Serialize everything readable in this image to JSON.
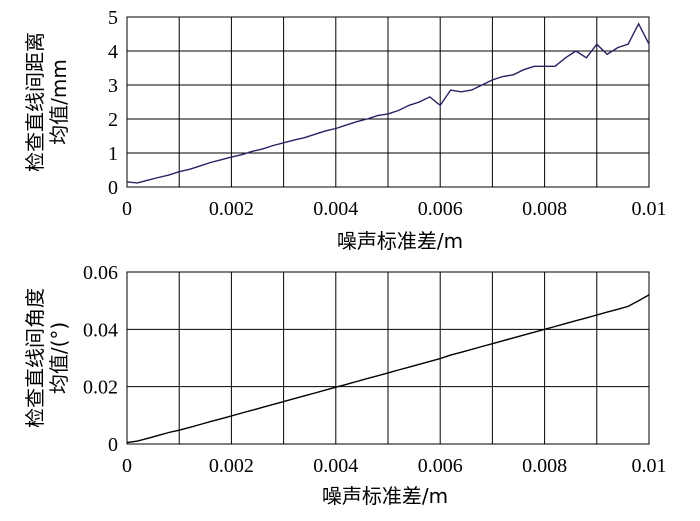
{
  "chart_data": [
    {
      "type": "line",
      "xlabel": "噪声标准差/m",
      "ylabel": [
        "检查直线间距离",
        "均值/mm"
      ],
      "xlim": [
        0,
        0.01
      ],
      "ylim": [
        0,
        5
      ],
      "xticks": [
        "0",
        "0.002",
        "0.004",
        "0.006",
        "0.008",
        "0.01"
      ],
      "yticks": [
        "0",
        "1",
        "2",
        "3",
        "4",
        "5"
      ],
      "grid": true,
      "line_color": "#2e1f63",
      "series": [
        {
          "x": [
            0,
            0.0002,
            0.0004,
            0.0006,
            0.0008,
            0.001,
            0.0012,
            0.0014,
            0.0016,
            0.0018,
            0.002,
            0.0022,
            0.0024,
            0.0026,
            0.0028,
            0.003,
            0.0032,
            0.0034,
            0.0036,
            0.0038,
            0.004,
            0.0042,
            0.0044,
            0.0046,
            0.0048,
            0.005,
            0.0052,
            0.0054,
            0.0056,
            0.0058,
            0.006,
            0.0062,
            0.0064,
            0.0066,
            0.0068,
            0.007,
            0.0072,
            0.0074,
            0.0076,
            0.0078,
            0.008,
            0.0082,
            0.0084,
            0.0086,
            0.0088,
            0.009,
            0.0092,
            0.0094,
            0.0096,
            0.0098,
            0.01
          ],
          "values": [
            0.15,
            0.12,
            0.2,
            0.28,
            0.35,
            0.45,
            0.52,
            0.62,
            0.72,
            0.8,
            0.88,
            0.95,
            1.05,
            1.12,
            1.22,
            1.3,
            1.38,
            1.45,
            1.55,
            1.65,
            1.72,
            1.82,
            1.92,
            2.0,
            2.1,
            2.15,
            2.25,
            2.4,
            2.5,
            2.65,
            2.4,
            2.85,
            2.8,
            2.85,
            3.0,
            3.15,
            3.25,
            3.3,
            3.45,
            3.55,
            3.55,
            3.55,
            3.8,
            4.0,
            3.8,
            4.2,
            3.9,
            4.1,
            4.2,
            4.8,
            4.2
          ]
        }
      ]
    },
    {
      "type": "line",
      "xlabel": "噪声标准差/m",
      "ylabel": [
        "检查直线间角度",
        "均值/(°)"
      ],
      "xlim": [
        0,
        0.01
      ],
      "ylim": [
        0,
        0.06
      ],
      "xticks": [
        "0",
        "0.002",
        "0.004",
        "0.006",
        "0.008",
        "0.01"
      ],
      "yticks": [
        "0",
        "0.02",
        "0.04",
        "0.06"
      ],
      "grid": true,
      "line_color": "#000000",
      "series": [
        {
          "x": [
            0,
            0.0002,
            0.0004,
            0.0006,
            0.0008,
            0.001,
            0.0012,
            0.0014,
            0.0016,
            0.0018,
            0.002,
            0.0022,
            0.0024,
            0.0026,
            0.0028,
            0.003,
            0.0032,
            0.0034,
            0.0036,
            0.0038,
            0.004,
            0.0042,
            0.0044,
            0.0046,
            0.0048,
            0.005,
            0.0052,
            0.0054,
            0.0056,
            0.0058,
            0.006,
            0.0062,
            0.0064,
            0.0066,
            0.0068,
            0.007,
            0.0072,
            0.0074,
            0.0076,
            0.0078,
            0.008,
            0.0082,
            0.0084,
            0.0086,
            0.0088,
            0.009,
            0.0092,
            0.0094,
            0.0096,
            0.0098,
            0.01
          ],
          "values": [
            0.0005,
            0.001,
            0.002,
            0.003,
            0.004,
            0.0048,
            0.0058,
            0.0068,
            0.0078,
            0.0088,
            0.0098,
            0.0108,
            0.0118,
            0.0128,
            0.0138,
            0.0148,
            0.0158,
            0.0168,
            0.0178,
            0.0188,
            0.0198,
            0.0208,
            0.0218,
            0.0228,
            0.0238,
            0.0248,
            0.0258,
            0.0268,
            0.0278,
            0.0288,
            0.0298,
            0.031,
            0.032,
            0.033,
            0.034,
            0.035,
            0.036,
            0.037,
            0.038,
            0.039,
            0.04,
            0.041,
            0.042,
            0.043,
            0.044,
            0.045,
            0.046,
            0.047,
            0.048,
            0.05,
            0.052
          ]
        }
      ]
    }
  ]
}
